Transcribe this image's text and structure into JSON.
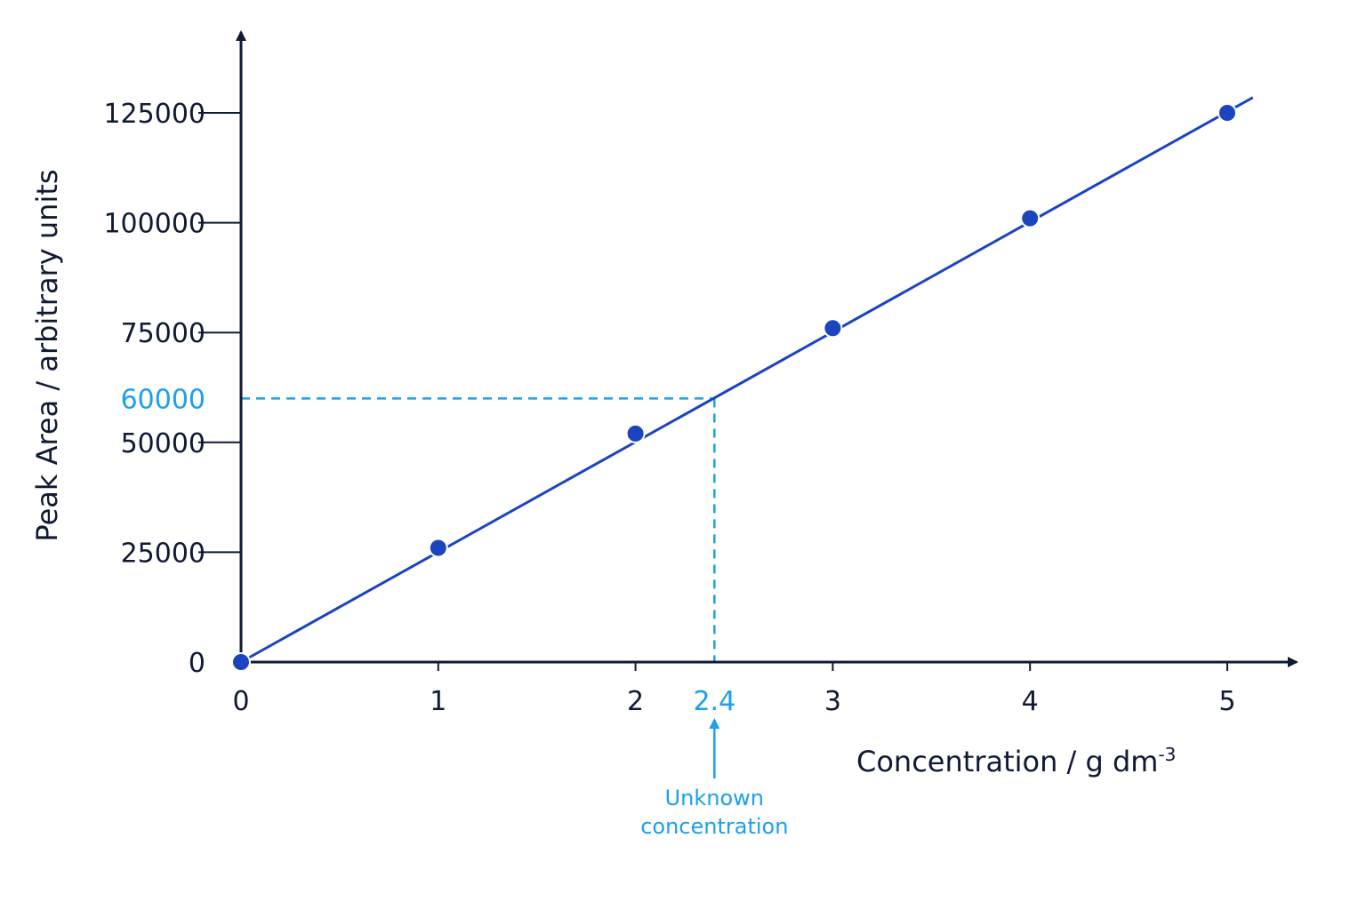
{
  "chart_data": {
    "type": "scatter",
    "title": "",
    "xlabel": "Concentration / g dm",
    "xlabel_sup": "-3",
    "ylabel": "Peak Area / arbitrary units",
    "x_ticks": [
      "0",
      "1",
      "2",
      "3",
      "4",
      "5"
    ],
    "y_ticks": [
      "0",
      "25000",
      "50000",
      "75000",
      "100000",
      "125000"
    ],
    "xlim": [
      0,
      5.35
    ],
    "ylim": [
      0,
      142000
    ],
    "grid": false,
    "legend": "none",
    "series": [
      {
        "x": [
          0,
          1,
          2,
          3,
          4,
          5
        ],
        "y": [
          0,
          26000,
          52000,
          76000,
          101000,
          125000
        ],
        "style": "points-with-best-fit-line"
      }
    ],
    "best_fit": {
      "x": [
        0,
        5.13
      ],
      "y": [
        0,
        128500
      ]
    },
    "annotation": {
      "x_value": 2.4,
      "y_value": 60000,
      "x_label": "2.4",
      "y_label": "60000",
      "text_line1": "Unknown",
      "text_line2": "concentration"
    },
    "colors": {
      "axis": "#0f1a33",
      "series": "#1a44c0",
      "annotation": "#1aa0ee"
    }
  }
}
